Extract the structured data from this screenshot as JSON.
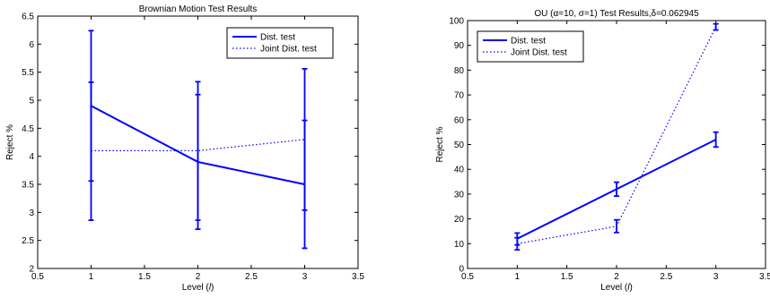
{
  "chart_data": [
    {
      "type": "line",
      "title": "Brownian Motion Test Results",
      "xlabel": "Level (",
      "xlabel_var": "l",
      "xlabel_end": ")",
      "ylabel": "Reject %",
      "xlim": [
        0.5,
        3.5
      ],
      "ylim": [
        2,
        6.5
      ],
      "xticks": [
        "0.5",
        "1",
        "1.5",
        "2",
        "2.5",
        "3",
        "3.5"
      ],
      "yticks": [
        "2",
        "2.5",
        "3",
        "3.5",
        "4",
        "4.5",
        "5",
        "5.5",
        "6",
        "6.5"
      ],
      "grid": false,
      "legend_position": "top-right",
      "colors": {
        "series": "#0000ff",
        "axis": "#000000"
      },
      "x": [
        1,
        2,
        3
      ],
      "series": [
        {
          "name": "Dist. test",
          "style": "solid",
          "values": [
            4.9,
            3.9,
            3.5
          ],
          "error_low": [
            3.56,
            2.86,
            2.36
          ],
          "error_high": [
            6.24,
            5.1,
            4.64
          ]
        },
        {
          "name": "Joint Dist. test",
          "style": "dotted",
          "values": [
            4.1,
            4.1,
            4.3
          ],
          "error_low": [
            2.86,
            2.7,
            3.04
          ],
          "error_high": [
            5.32,
            5.33,
            5.56
          ]
        }
      ]
    },
    {
      "type": "line",
      "title": "OU (α=10, σ=1) Test Results,δ=0.062945",
      "xlabel": "Level (",
      "xlabel_var": "l",
      "xlabel_end": ")",
      "ylabel": "Reject %",
      "xlim": [
        0.5,
        3.5
      ],
      "ylim": [
        0,
        100
      ],
      "xticks": [
        "0.5",
        "1",
        "1.5",
        "2",
        "2.5",
        "3",
        "3.5"
      ],
      "yticks": [
        "0",
        "10",
        "20",
        "30",
        "40",
        "50",
        "60",
        "70",
        "80",
        "90",
        "100"
      ],
      "grid": false,
      "legend_position": "top-left",
      "colors": {
        "series": "#0000ff",
        "axis": "#000000"
      },
      "x": [
        1,
        2,
        3
      ],
      "series": [
        {
          "name": "Dist. test",
          "style": "solid",
          "values": [
            12,
            32,
            52
          ],
          "error_low": [
            9.5,
            29.2,
            49
          ],
          "error_high": [
            14.3,
            34.8,
            55
          ]
        },
        {
          "name": "Joint Dist. test",
          "style": "dotted",
          "values": [
            10,
            17,
            97.5
          ],
          "error_low": [
            7.5,
            14.5,
            96.2
          ],
          "error_high": [
            12.4,
            19.6,
            98.7
          ]
        }
      ]
    }
  ]
}
